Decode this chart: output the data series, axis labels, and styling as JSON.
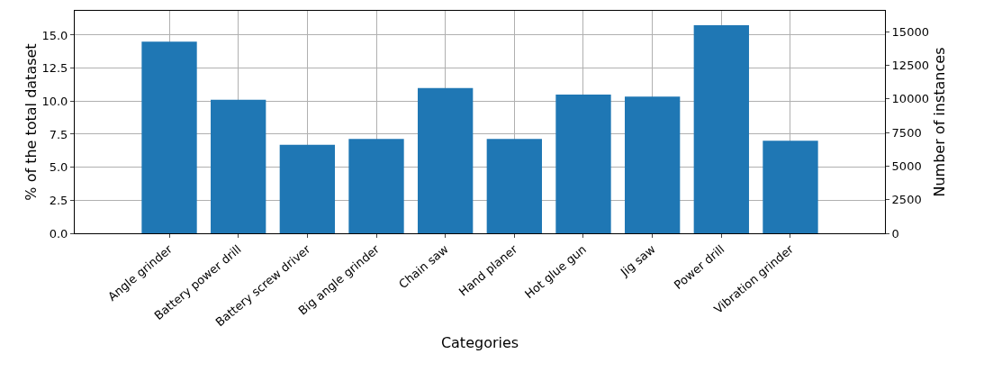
{
  "chart_data": {
    "type": "bar",
    "xlabel": "Categories",
    "ylabel": "% of the total dataset",
    "y2label": "Number of instances",
    "categories": [
      "Angle grinder",
      "Battery power drill",
      "Battery screw driver",
      "Big angle grinder",
      "Chain saw",
      "Hand planer",
      "Hot glue gun",
      "Jig saw",
      "Power drill",
      "Vibration grinder"
    ],
    "series": [
      {
        "color": "#1f77b4",
        "values": [
          14.5,
          10.1,
          6.7,
          7.15,
          11.0,
          7.15,
          10.5,
          10.35,
          15.75,
          7.0
        ]
      }
    ],
    "ylim": [
      0,
      16.84
    ],
    "yticks": [
      {
        "value": 0,
        "label": "0.0"
      },
      {
        "value": 2.5,
        "label": "2.5"
      },
      {
        "value": 5,
        "label": "5.0"
      },
      {
        "value": 7.5,
        "label": "7.5"
      },
      {
        "value": 10,
        "label": "10.0"
      },
      {
        "value": 12.5,
        "label": "12.5"
      },
      {
        "value": 15,
        "label": "15.0"
      }
    ],
    "y2lim": [
      0,
      16540
    ],
    "y2ticks": [
      0,
      2500,
      5000,
      7500,
      10000,
      12500,
      15000
    ],
    "grid": true
  }
}
